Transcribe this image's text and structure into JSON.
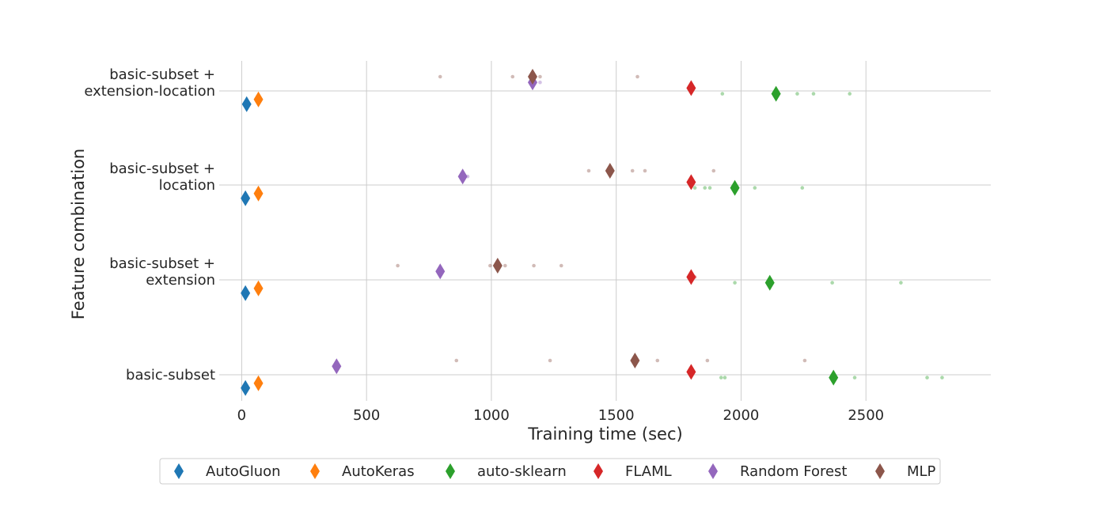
{
  "chart_data": {
    "type": "scatter",
    "title": "",
    "xlabel": "Training time (sec)",
    "ylabel": "Feature combination",
    "xlim": [
      -90,
      3000
    ],
    "x_ticks": [
      0,
      500,
      1000,
      1500,
      2000,
      2500
    ],
    "grid": true,
    "legend_position": "bottom",
    "categories": [
      [
        "basic-subset +",
        "extension-location"
      ],
      [
        "basic-subset +",
        "location"
      ],
      [
        "basic-subset +",
        "extension"
      ],
      [
        "basic-subset"
      ]
    ],
    "series": [
      {
        "name": "AutoGluon",
        "color": "#1f77b4",
        "offset": 0.14,
        "means": [
          20,
          15,
          15,
          15
        ],
        "points": [
          [],
          [],
          [],
          []
        ]
      },
      {
        "name": "AutoKeras",
        "color": "#ff7f0e",
        "offset": 0.09,
        "means": [
          67,
          67,
          67,
          67
        ],
        "points": [
          [],
          [],
          [],
          []
        ]
      },
      {
        "name": "auto-sklearn",
        "color": "#2ca02c",
        "offset": 0.03,
        "means": [
          2140,
          1975,
          2115,
          2370
        ],
        "points": [
          [
            1925,
            2225,
            2290,
            2435
          ],
          [
            1815,
            1855,
            1875,
            2055,
            2245
          ],
          [
            1975,
            2365,
            2640
          ],
          [
            1920,
            1935,
            2455,
            2745,
            2805
          ]
        ]
      },
      {
        "name": "FLAML",
        "color": "#d62728",
        "offset": -0.03,
        "means": [
          1800,
          1800,
          1800,
          1800
        ],
        "points": [
          [],
          [],
          [
            1815
          ],
          []
        ]
      },
      {
        "name": "Random Forest",
        "color": "#9467bd",
        "offset": -0.09,
        "means": [
          1165,
          885,
          795,
          380
        ],
        "points": [
          [
            1175,
            1195
          ],
          [
            905
          ],
          [],
          []
        ]
      },
      {
        "name": "MLP",
        "color": "#8c564b",
        "offset": -0.15,
        "means": [
          1165,
          1475,
          1025,
          1575
        ],
        "points": [
          [
            795,
            1085,
            1195,
            1585
          ],
          [
            1390,
            1565,
            1615,
            1890
          ],
          [
            625,
            995,
            1055,
            1170,
            1280
          ],
          [
            860,
            1235,
            1665,
            1865,
            2255
          ]
        ]
      }
    ]
  }
}
